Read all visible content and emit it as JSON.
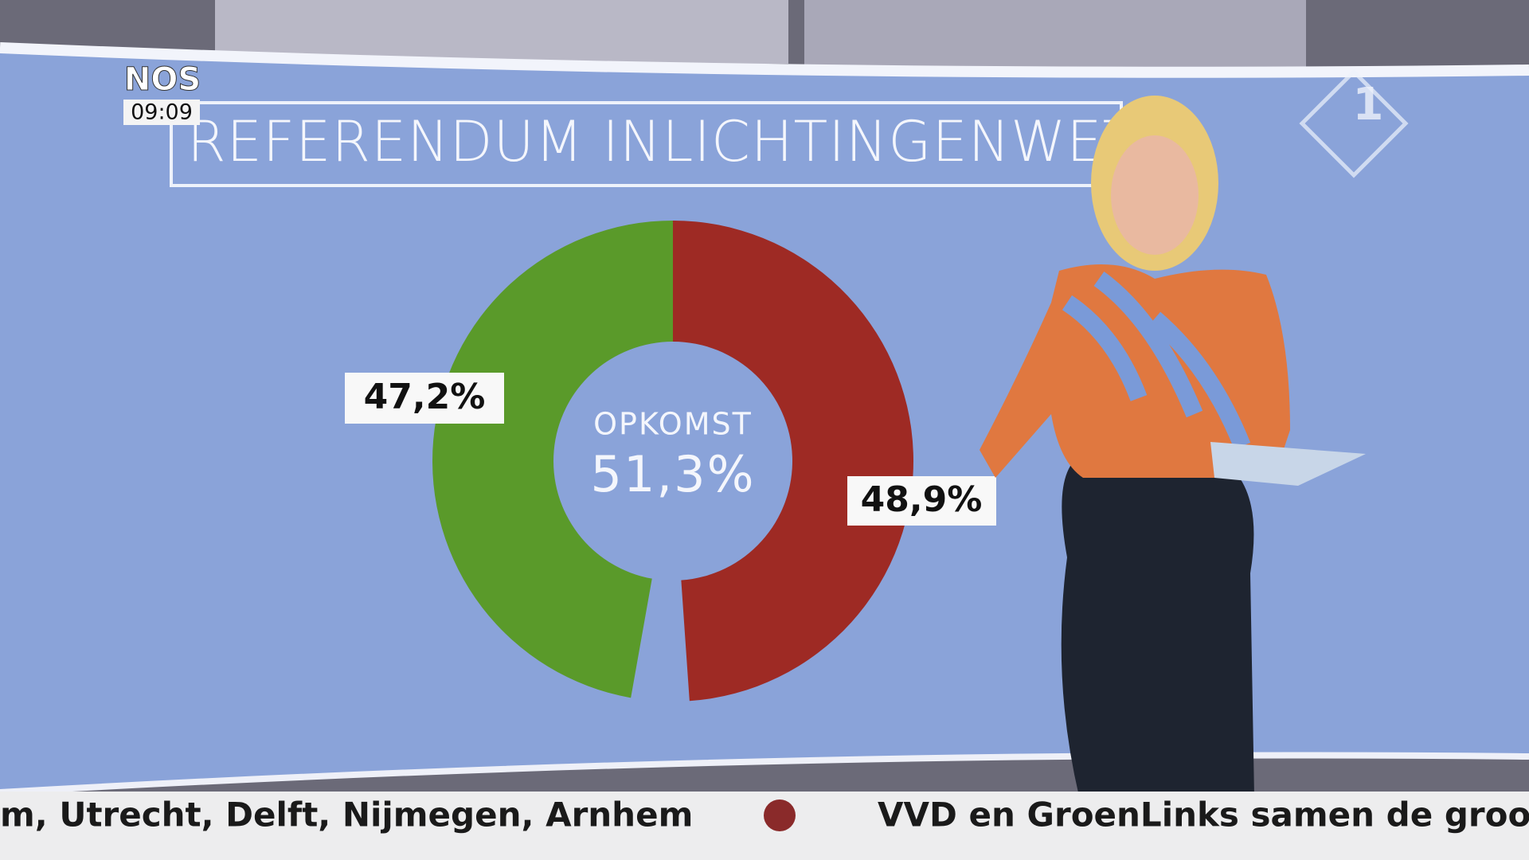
{
  "chart_data": {
    "type": "pie",
    "title": "REFERENDUM INLICHTINGENWET",
    "values": [
      47.2,
      48.9
    ],
    "value_labels": [
      "47,2%",
      "48,9%"
    ],
    "colors": [
      "#5a9a2a",
      "#9e2a24"
    ],
    "center_label": "OPKOMST",
    "center_value": 51.3,
    "center_value_label": "51,3%"
  },
  "overlay": {
    "logo": "NOS",
    "time": "09:09",
    "channel": "1",
    "ticker": [
      "m, Utrecht, Delft, Nijmegen, Arnhem",
      "VVD en GroenLinks samen de groo"
    ]
  }
}
